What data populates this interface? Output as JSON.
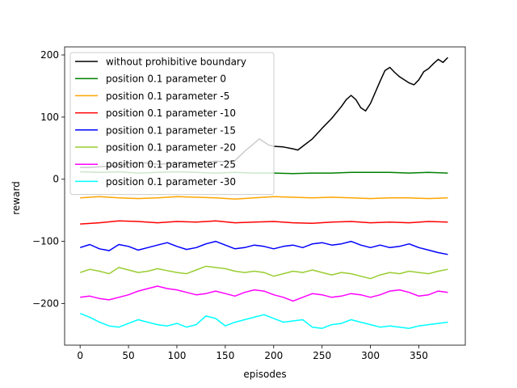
{
  "chart_data": {
    "type": "line",
    "title": "",
    "xlabel": "episodes",
    "ylabel": "reward",
    "xlim": [
      -16,
      398
    ],
    "ylim": [
      -267,
      213
    ],
    "xticks": [
      0,
      50,
      100,
      150,
      200,
      250,
      300,
      350
    ],
    "yticks": [
      -200,
      -100,
      0,
      100,
      200
    ],
    "grid": false,
    "legend_position": "upper-left",
    "series": [
      {
        "name": "without prohibitive boundary",
        "color": "#000000",
        "x": [
          0,
          10,
          20,
          30,
          40,
          50,
          60,
          70,
          80,
          90,
          100,
          110,
          120,
          130,
          140,
          150,
          160,
          170,
          180,
          185,
          190,
          195,
          200,
          210,
          220,
          225,
          230,
          240,
          250,
          260,
          270,
          275,
          280,
          285,
          290,
          295,
          300,
          310,
          315,
          320,
          325,
          330,
          335,
          340,
          345,
          350,
          355,
          360,
          365,
          370,
          375,
          380
        ],
        "y": [
          19,
          19,
          20,
          21,
          23,
          25,
          27,
          26,
          24,
          25,
          26,
          27,
          25,
          27,
          29,
          28,
          30,
          45,
          58,
          65,
          60,
          55,
          53,
          52,
          49,
          47,
          53,
          65,
          82,
          98,
          117,
          128,
          135,
          128,
          115,
          110,
          122,
          158,
          175,
          180,
          172,
          165,
          160,
          155,
          152,
          160,
          173,
          178,
          186,
          193,
          188,
          196
        ]
      },
      {
        "name": "position 0.1 parameter 0",
        "color": "#008000",
        "x": [
          0,
          20,
          40,
          60,
          80,
          100,
          120,
          140,
          160,
          180,
          200,
          220,
          240,
          260,
          280,
          300,
          320,
          340,
          360,
          380
        ],
        "y": [
          12,
          11,
          12,
          10,
          11,
          12,
          11,
          10,
          11,
          10,
          10,
          9,
          10,
          10,
          11,
          11,
          11,
          10,
          11,
          10
        ]
      },
      {
        "name": "position 0.1 parameter -5",
        "color": "#ffa500",
        "x": [
          0,
          20,
          40,
          60,
          80,
          100,
          120,
          140,
          160,
          180,
          200,
          220,
          240,
          260,
          280,
          300,
          320,
          340,
          360,
          380
        ],
        "y": [
          -30,
          -28,
          -30,
          -31,
          -30,
          -28,
          -29,
          -30,
          -32,
          -30,
          -28,
          -29,
          -30,
          -29,
          -30,
          -31,
          -30,
          -30,
          -31,
          -30
        ]
      },
      {
        "name": "position 0.1 parameter -10",
        "color": "#ff0000",
        "x": [
          0,
          20,
          40,
          60,
          80,
          100,
          120,
          140,
          160,
          180,
          200,
          220,
          240,
          260,
          280,
          300,
          320,
          340,
          360,
          380
        ],
        "y": [
          -72,
          -70,
          -67,
          -68,
          -70,
          -68,
          -69,
          -67,
          -70,
          -69,
          -68,
          -70,
          -71,
          -69,
          -68,
          -70,
          -69,
          -70,
          -68,
          -69
        ]
      },
      {
        "name": "position 0.1 parameter -15",
        "color": "#0000ff",
        "x": [
          0,
          10,
          20,
          30,
          40,
          50,
          60,
          70,
          80,
          90,
          100,
          110,
          120,
          130,
          140,
          150,
          160,
          170,
          180,
          190,
          200,
          210,
          220,
          230,
          240,
          250,
          260,
          270,
          280,
          290,
          300,
          310,
          320,
          330,
          340,
          350,
          360,
          370,
          380
        ],
        "y": [
          -110,
          -105,
          -112,
          -115,
          -105,
          -108,
          -114,
          -110,
          -106,
          -102,
          -108,
          -113,
          -110,
          -104,
          -100,
          -106,
          -112,
          -110,
          -106,
          -108,
          -112,
          -108,
          -106,
          -110,
          -104,
          -102,
          -106,
          -104,
          -100,
          -106,
          -110,
          -106,
          -110,
          -108,
          -104,
          -110,
          -114,
          -118,
          -121
        ]
      },
      {
        "name": "position 0.1 parameter -20",
        "color": "#9acd32",
        "x": [
          0,
          10,
          20,
          30,
          40,
          50,
          60,
          70,
          80,
          90,
          100,
          110,
          120,
          130,
          140,
          150,
          160,
          170,
          180,
          190,
          200,
          210,
          220,
          230,
          240,
          250,
          260,
          270,
          280,
          290,
          300,
          310,
          320,
          330,
          340,
          350,
          360,
          370,
          380
        ],
        "y": [
          -150,
          -145,
          -148,
          -152,
          -142,
          -146,
          -150,
          -148,
          -144,
          -147,
          -150,
          -152,
          -146,
          -140,
          -142,
          -144,
          -148,
          -150,
          -148,
          -150,
          -156,
          -152,
          -148,
          -150,
          -146,
          -150,
          -154,
          -150,
          -152,
          -156,
          -160,
          -154,
          -150,
          -152,
          -148,
          -150,
          -152,
          -148,
          -145
        ]
      },
      {
        "name": "position 0.1 parameter -25",
        "color": "#ff00ff",
        "x": [
          0,
          10,
          20,
          30,
          40,
          50,
          60,
          70,
          80,
          90,
          100,
          110,
          120,
          130,
          140,
          150,
          160,
          170,
          180,
          190,
          200,
          210,
          220,
          230,
          240,
          250,
          260,
          270,
          280,
          290,
          300,
          310,
          320,
          330,
          340,
          350,
          360,
          370,
          380
        ],
        "y": [
          -190,
          -188,
          -192,
          -194,
          -190,
          -186,
          -180,
          -176,
          -172,
          -176,
          -178,
          -182,
          -186,
          -184,
          -180,
          -184,
          -188,
          -182,
          -178,
          -180,
          -186,
          -190,
          -196,
          -190,
          -184,
          -186,
          -190,
          -188,
          -184,
          -186,
          -190,
          -186,
          -180,
          -178,
          -182,
          -188,
          -186,
          -180,
          -182
        ]
      },
      {
        "name": "position 0.1 parameter -30",
        "color": "#00ffff",
        "x": [
          0,
          10,
          20,
          30,
          40,
          50,
          60,
          70,
          80,
          90,
          100,
          110,
          120,
          130,
          140,
          150,
          160,
          170,
          180,
          190,
          200,
          210,
          220,
          230,
          240,
          250,
          260,
          270,
          280,
          290,
          300,
          310,
          320,
          330,
          340,
          350,
          360,
          370,
          380
        ],
        "y": [
          -216,
          -222,
          -230,
          -236,
          -238,
          -232,
          -226,
          -230,
          -234,
          -236,
          -232,
          -238,
          -234,
          -220,
          -224,
          -236,
          -230,
          -226,
          -222,
          -218,
          -224,
          -230,
          -228,
          -226,
          -238,
          -240,
          -234,
          -232,
          -226,
          -230,
          -234,
          -238,
          -236,
          -238,
          -240,
          -236,
          -234,
          -232,
          -230
        ]
      }
    ]
  }
}
